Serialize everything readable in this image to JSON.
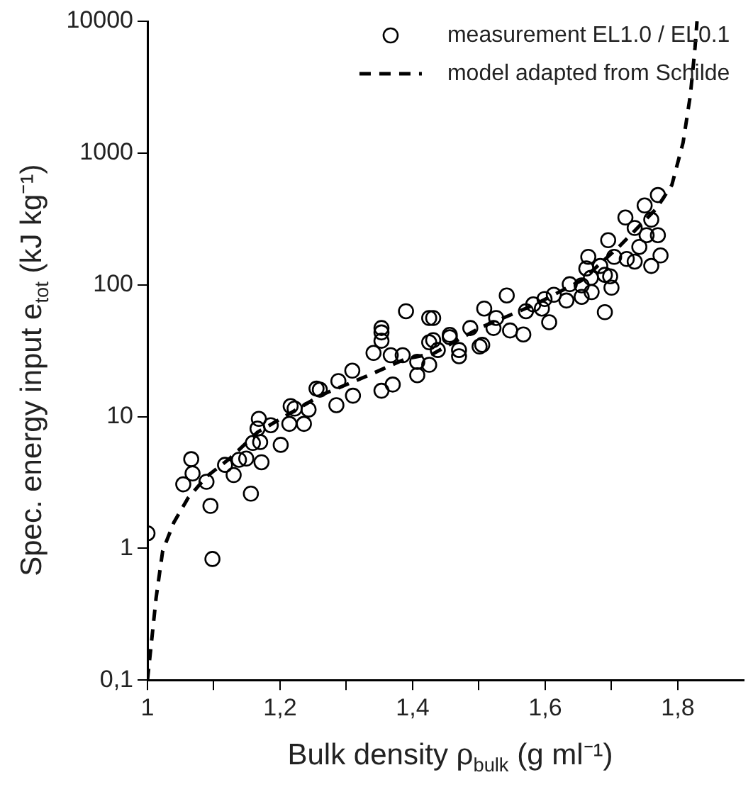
{
  "chart_data": {
    "type": "scatter",
    "xlabel": "Bulk density ρ$_{bulk}$ (g ml⁻¹)",
    "ylabel": "Spec. energy input e$_{tot}$ (kJ kg⁻¹)",
    "xlim": [
      1,
      1.9
    ],
    "xticks": [
      1,
      {
        "value": 1.1,
        "label": null
      },
      {
        "value": 1.2,
        "label": "1,2"
      },
      {
        "value": 1.3,
        "label": null
      },
      {
        "value": 1.4,
        "label": "1,4"
      },
      {
        "value": 1.5,
        "label": null
      },
      {
        "value": 1.6,
        "label": "1,6"
      },
      {
        "value": 1.7,
        "label": null
      },
      {
        "value": 1.8,
        "label": "1,8"
      }
    ],
    "ylim": [
      0.1,
      10000
    ],
    "yticks": [
      {
        "value": 0.1,
        "label": "0,1"
      },
      1,
      10,
      100,
      1000,
      10000
    ],
    "log": "y",
    "grid": false,
    "legend": "top right",
    "series": [
      {
        "name": "measurement EL1.0 / EL0.1",
        "marker": "circle",
        "color": "#000000",
        "x": [
          1.0,
          1.054,
          1.066,
          1.068,
          1.089,
          1.095,
          1.098,
          1.117,
          1.13,
          1.138,
          1.149,
          1.156,
          1.159,
          1.168,
          1.166,
          1.17,
          1.172,
          1.186,
          1.201,
          1.214,
          1.216,
          1.222,
          1.236,
          1.243,
          1.255,
          1.26,
          1.285,
          1.288,
          1.309,
          1.31,
          1.341,
          1.353,
          1.353,
          1.353,
          1.353,
          1.367,
          1.37,
          1.385,
          1.39,
          1.407,
          1.407,
          1.425,
          1.425,
          1.425,
          1.431,
          1.431,
          1.438,
          1.456,
          1.456,
          1.47,
          1.47,
          1.487,
          1.501,
          1.505,
          1.508,
          1.522,
          1.526,
          1.542,
          1.547,
          1.567,
          1.571,
          1.582,
          1.595,
          1.599,
          1.606,
          1.613,
          1.632,
          1.637,
          1.655,
          1.655,
          1.662,
          1.665,
          1.669,
          1.67,
          1.683,
          1.69,
          1.69,
          1.695,
          1.698,
          1.7,
          1.704,
          1.721,
          1.723,
          1.735,
          1.735,
          1.742,
          1.75,
          1.753,
          1.76,
          1.76,
          1.77,
          1.77,
          1.774
        ],
        "values": [
          1.3,
          3.06,
          4.75,
          3.7,
          3.2,
          2.1,
          0.83,
          4.3,
          3.6,
          4.7,
          4.8,
          2.6,
          6.3,
          9.6,
          8.1,
          6.4,
          4.5,
          8.6,
          6.1,
          8.8,
          12,
          11.5,
          8.8,
          11.3,
          16.3,
          16,
          12.2,
          18.6,
          22.3,
          14.4,
          30.4,
          37.6,
          43.5,
          15.7,
          47,
          29.2,
          17.5,
          29.2,
          63,
          26,
          20.6,
          24.7,
          36.6,
          56,
          56,
          38,
          32,
          40,
          41.7,
          32,
          28.7,
          47,
          34,
          35,
          66,
          47,
          56,
          83,
          45,
          42,
          63,
          71,
          66,
          78,
          52,
          84,
          76,
          101,
          99,
          81,
          133,
          163,
          113,
          88,
          139,
          119,
          62,
          218,
          116,
          95,
          163,
          324,
          157,
          270,
          150,
          194,
          400,
          238,
          312,
          139,
          480,
          238,
          167
        ]
      },
      {
        "name": "model adapted from Schilde",
        "type": "line",
        "marker": "none",
        "line_style": "dashed",
        "color": "#000000",
        "x": [
          1.0,
          1.004,
          1.013,
          1.023,
          1.04,
          1.061,
          1.089,
          1.124,
          1.166,
          1.222,
          1.264,
          1.334,
          1.39,
          1.431,
          1.501,
          1.585,
          1.655,
          1.711,
          1.767,
          1.791,
          1.808,
          1.819,
          1.826,
          1.829
        ],
        "values": [
          0.1,
          0.155,
          0.42,
          0.96,
          1.58,
          2.4,
          3.5,
          4.8,
          7.6,
          11.1,
          14.7,
          20.6,
          27.5,
          30,
          47,
          71,
          108,
          194,
          375,
          570,
          1200,
          2750,
          6300,
          10000
        ]
      }
    ]
  }
}
